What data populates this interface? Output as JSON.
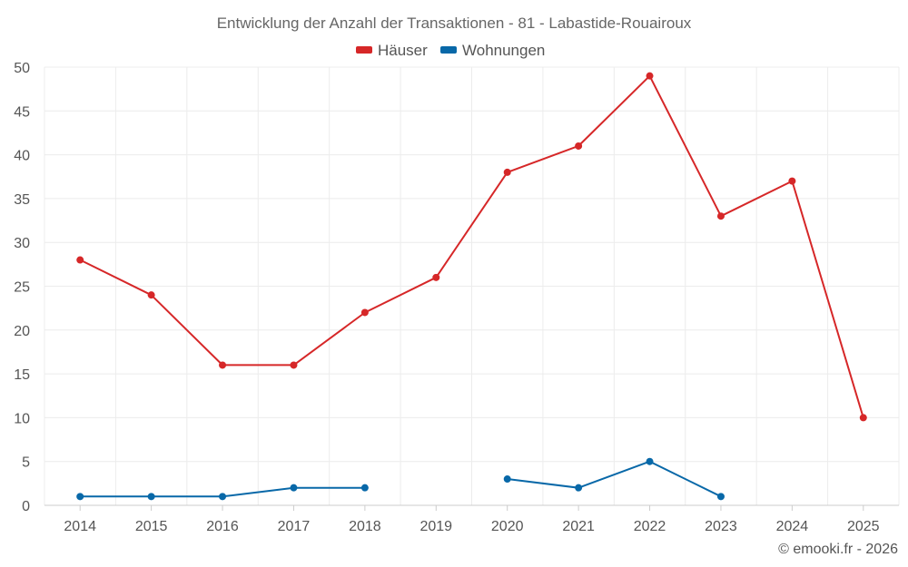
{
  "chart_data": {
    "type": "line",
    "title": "Entwicklung der Anzahl der Transaktionen - 81 - Labastide-Rouairoux",
    "categories": [
      "2014",
      "2015",
      "2016",
      "2017",
      "2018",
      "2019",
      "2020",
      "2021",
      "2022",
      "2023",
      "2024",
      "2025"
    ],
    "ylim": [
      0,
      50
    ],
    "yticks": [
      0,
      5,
      10,
      15,
      20,
      25,
      30,
      35,
      40,
      45,
      50
    ],
    "grid": true,
    "legend_position": "top-center",
    "series": [
      {
        "name": "Häuser",
        "color": "#d62728",
        "values": [
          28,
          24,
          16,
          16,
          22,
          26,
          38,
          41,
          49,
          33,
          37,
          10
        ]
      },
      {
        "name": "Wohnungen",
        "color": "#0868a8",
        "values": [
          1,
          1,
          1,
          2,
          2,
          null,
          3,
          2,
          5,
          1,
          null,
          null
        ]
      }
    ],
    "credit": "© emooki.fr - 2026"
  }
}
